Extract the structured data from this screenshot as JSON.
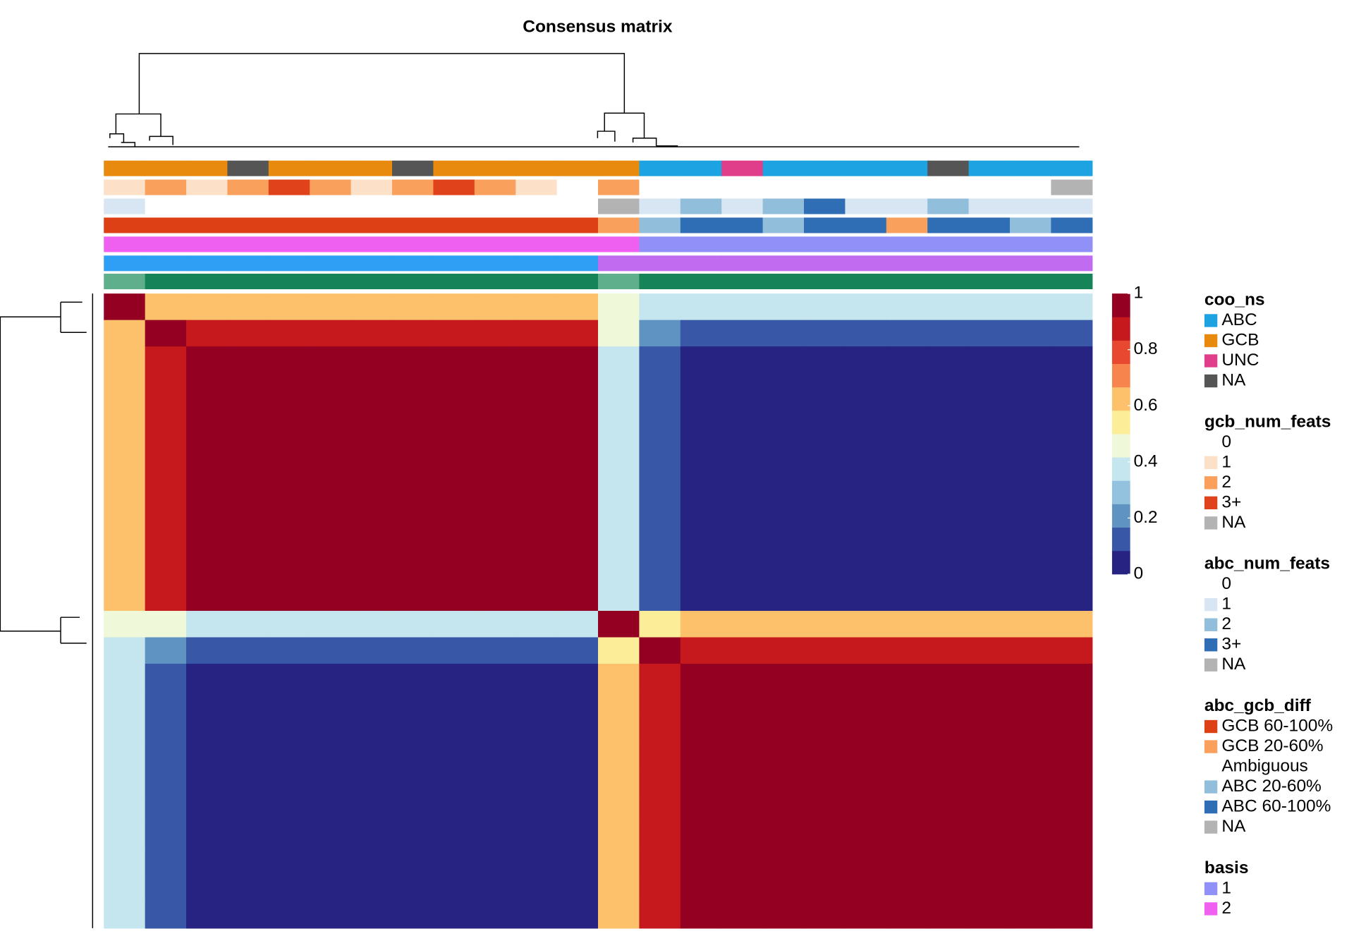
{
  "chart_data": {
    "type": "heatmap",
    "title": "Consensus matrix",
    "zlim": [
      0,
      1
    ],
    "zticks": [
      0,
      0.2,
      0.4,
      0.6,
      0.8,
      1
    ],
    "colorscale": [
      "#262383",
      "#3857a6",
      "#5f93c2",
      "#93c2de",
      "#c5e5ef",
      "#eff8d8",
      "#fcee98",
      "#fdc06b",
      "#f6844c",
      "#e8482f",
      "#c6191d",
      "#940021"
    ],
    "matrix": [
      [
        1,
        0.62,
        0.65,
        0.65,
        0.65,
        0.65,
        0.65,
        0.65,
        0.65,
        0.65,
        0.65,
        0.65,
        0.47,
        0.4,
        0.35,
        0.35,
        0.35,
        0.35,
        0.35,
        0.35,
        0.35,
        0.35,
        0.35,
        0.35
      ],
      [
        0.62,
        1,
        0.9,
        0.9,
        0.9,
        0.9,
        0.9,
        0.9,
        0.9,
        0.9,
        0.9,
        0.9,
        0.42,
        0.22,
        0.1,
        0.1,
        0.1,
        0.1,
        0.1,
        0.1,
        0.1,
        0.1,
        0.1,
        0.1
      ],
      [
        0.65,
        0.9,
        1,
        1,
        1,
        1,
        1,
        1,
        1,
        1,
        1,
        1,
        0.4,
        0.15,
        0,
        0,
        0,
        0,
        0,
        0,
        0,
        0,
        0,
        0
      ],
      [
        0.65,
        0.9,
        1,
        1,
        1,
        1,
        1,
        1,
        1,
        1,
        1,
        1,
        0.4,
        0.15,
        0,
        0,
        0,
        0,
        0,
        0,
        0,
        0,
        0,
        0
      ],
      [
        0.65,
        0.9,
        1,
        1,
        1,
        1,
        1,
        1,
        1,
        1,
        1,
        1,
        0.4,
        0.15,
        0,
        0,
        0,
        0,
        0,
        0,
        0,
        0,
        0,
        0
      ],
      [
        0.65,
        0.9,
        1,
        1,
        1,
        1,
        1,
        1,
        1,
        1,
        1,
        1,
        0.4,
        0.15,
        0,
        0,
        0,
        0,
        0,
        0,
        0,
        0,
        0,
        0
      ],
      [
        0.65,
        0.9,
        1,
        1,
        1,
        1,
        1,
        1,
        1,
        1,
        1,
        1,
        0.4,
        0.15,
        0,
        0,
        0,
        0,
        0,
        0,
        0,
        0,
        0,
        0
      ],
      [
        0.65,
        0.9,
        1,
        1,
        1,
        1,
        1,
        1,
        1,
        1,
        1,
        1,
        0.4,
        0.15,
        0,
        0,
        0,
        0,
        0,
        0,
        0,
        0,
        0,
        0
      ],
      [
        0.65,
        0.9,
        1,
        1,
        1,
        1,
        1,
        1,
        1,
        1,
        1,
        1,
        0.4,
        0.15,
        0,
        0,
        0,
        0,
        0,
        0,
        0,
        0,
        0,
        0
      ],
      [
        0.65,
        0.9,
        1,
        1,
        1,
        1,
        1,
        1,
        1,
        1,
        1,
        1,
        0.4,
        0.15,
        0,
        0,
        0,
        0,
        0,
        0,
        0,
        0,
        0,
        0
      ],
      [
        0.65,
        0.9,
        1,
        1,
        1,
        1,
        1,
        1,
        1,
        1,
        1,
        1,
        0.4,
        0.15,
        0,
        0,
        0,
        0,
        0,
        0,
        0,
        0,
        0,
        0
      ],
      [
        0.65,
        0.9,
        1,
        1,
        1,
        1,
        1,
        1,
        1,
        1,
        1,
        1,
        0.4,
        0.15,
        0,
        0,
        0,
        0,
        0,
        0,
        0,
        0,
        0,
        0
      ],
      [
        0.47,
        0.42,
        0.4,
        0.4,
        0.4,
        0.4,
        0.4,
        0.4,
        0.4,
        0.4,
        0.4,
        0.4,
        1,
        0.57,
        0.6,
        0.6,
        0.6,
        0.6,
        0.6,
        0.6,
        0.6,
        0.6,
        0.6,
        0.6
      ],
      [
        0.4,
        0.22,
        0.15,
        0.15,
        0.15,
        0.15,
        0.15,
        0.15,
        0.15,
        0.15,
        0.15,
        0.15,
        0.57,
        1,
        0.85,
        0.85,
        0.85,
        0.85,
        0.85,
        0.85,
        0.85,
        0.85,
        0.85,
        0.85
      ],
      [
        0.35,
        0.1,
        0,
        0,
        0,
        0,
        0,
        0,
        0,
        0,
        0,
        0,
        0.6,
        0.85,
        1,
        1,
        1,
        1,
        1,
        1,
        1,
        1,
        1,
        1
      ],
      [
        0.35,
        0.1,
        0,
        0,
        0,
        0,
        0,
        0,
        0,
        0,
        0,
        0,
        0.6,
        0.85,
        1,
        1,
        1,
        1,
        1,
        1,
        1,
        1,
        1,
        1
      ],
      [
        0.35,
        0.1,
        0,
        0,
        0,
        0,
        0,
        0,
        0,
        0,
        0,
        0,
        0.6,
        0.85,
        1,
        1,
        1,
        1,
        1,
        1,
        1,
        1,
        1,
        1
      ],
      [
        0.35,
        0.1,
        0,
        0,
        0,
        0,
        0,
        0,
        0,
        0,
        0,
        0,
        0.6,
        0.85,
        1,
        1,
        1,
        1,
        1,
        1,
        1,
        1,
        1,
        1
      ],
      [
        0.35,
        0.1,
        0,
        0,
        0,
        0,
        0,
        0,
        0,
        0,
        0,
        0,
        0.6,
        0.85,
        1,
        1,
        1,
        1,
        1,
        1,
        1,
        1,
        1,
        1
      ],
      [
        0.35,
        0.1,
        0,
        0,
        0,
        0,
        0,
        0,
        0,
        0,
        0,
        0,
        0.6,
        0.85,
        1,
        1,
        1,
        1,
        1,
        1,
        1,
        1,
        1,
        1
      ],
      [
        0.35,
        0.1,
        0,
        0,
        0,
        0,
        0,
        0,
        0,
        0,
        0,
        0,
        0.6,
        0.85,
        1,
        1,
        1,
        1,
        1,
        1,
        1,
        1,
        1,
        1
      ],
      [
        0.35,
        0.1,
        0,
        0,
        0,
        0,
        0,
        0,
        0,
        0,
        0,
        0,
        0.6,
        0.85,
        1,
        1,
        1,
        1,
        1,
        1,
        1,
        1,
        1,
        1
      ],
      [
        0.35,
        0.1,
        0,
        0,
        0,
        0,
        0,
        0,
        0,
        0,
        0,
        0,
        0.6,
        0.85,
        1,
        1,
        1,
        1,
        1,
        1,
        1,
        1,
        1,
        1
      ],
      [
        0.35,
        0.1,
        0,
        0,
        0,
        0,
        0,
        0,
        0,
        0,
        0,
        0,
        0.6,
        0.85,
        1,
        1,
        1,
        1,
        1,
        1,
        1,
        1,
        1,
        1
      ]
    ],
    "tracks": [
      {
        "title": "coo_ns",
        "levels": [
          {
            "label": "ABC",
            "color": "#1ea3e2"
          },
          {
            "label": "GCB",
            "color": "#e88a0e"
          },
          {
            "label": "UNC",
            "color": "#e03d8a"
          },
          {
            "label": "NA",
            "color": "#555555"
          }
        ],
        "values": [
          1,
          1,
          1,
          3,
          1,
          1,
          1,
          3,
          1,
          1,
          1,
          1,
          1,
          0,
          0,
          2,
          0,
          0,
          0,
          0,
          3,
          0,
          0,
          0
        ]
      },
      {
        "title": "gcb_num_feats",
        "levels": [
          {
            "label": "0",
            "color": "#ffffff"
          },
          {
            "label": "1",
            "color": "#fde0c8"
          },
          {
            "label": "2",
            "color": "#f9a05c"
          },
          {
            "label": "3+",
            "color": "#e0421b"
          },
          {
            "label": "NA",
            "color": "#b3b3b3"
          }
        ],
        "values": [
          1,
          2,
          1,
          2,
          3,
          2,
          1,
          2,
          3,
          2,
          1,
          0,
          2,
          0,
          0,
          0,
          0,
          0,
          0,
          0,
          0,
          0,
          0,
          4
        ]
      },
      {
        "title": "abc_num_feats",
        "levels": [
          {
            "label": "0",
            "color": "#ffffff"
          },
          {
            "label": "1",
            "color": "#d8e6f3"
          },
          {
            "label": "2",
            "color": "#91bedb"
          },
          {
            "label": "3+",
            "color": "#2f6db5"
          },
          {
            "label": "NA",
            "color": "#b3b3b3"
          }
        ],
        "values": [
          1,
          0,
          0,
          0,
          0,
          0,
          0,
          0,
          0,
          0,
          0,
          0,
          4,
          1,
          2,
          1,
          2,
          3,
          1,
          1,
          2,
          1,
          1,
          1
        ]
      },
      {
        "title": "abc_gcb_diff",
        "levels": [
          {
            "label": "GCB 60-100%",
            "color": "#de4015"
          },
          {
            "label": "GCB 20-60%",
            "color": "#f9a05c"
          },
          {
            "label": "Ambiguous",
            "color": "#ffffff"
          },
          {
            "label": "ABC 20-60%",
            "color": "#91bedb"
          },
          {
            "label": "ABC 60-100%",
            "color": "#2f6db5"
          },
          {
            "label": "NA",
            "color": "#b3b3b3"
          }
        ],
        "values": [
          0,
          0,
          0,
          0,
          0,
          0,
          0,
          0,
          0,
          0,
          0,
          0,
          1,
          3,
          4,
          4,
          3,
          4,
          4,
          1,
          4,
          4,
          3,
          4
        ]
      },
      {
        "title": "basis",
        "levels": [
          {
            "label": "1",
            "color": "#9090f8"
          },
          {
            "label": "2",
            "color": "#f060f0"
          }
        ],
        "values": [
          1,
          1,
          1,
          1,
          1,
          1,
          1,
          1,
          1,
          1,
          1,
          1,
          1,
          0,
          0,
          0,
          0,
          0,
          0,
          0,
          0,
          0,
          0,
          0
        ]
      },
      {
        "levels": [
          {
            "color": "#2f9ef5"
          },
          {
            "color": "#c06bf0"
          }
        ],
        "values": [
          0,
          0,
          0,
          0,
          0,
          0,
          0,
          0,
          0,
          0,
          0,
          0,
          1,
          1,
          1,
          1,
          1,
          1,
          1,
          1,
          1,
          1,
          1,
          1
        ]
      },
      {
        "levels": [
          {
            "color": "#168358"
          },
          {
            "color": "#5fae8c"
          }
        ],
        "values": [
          1,
          0,
          0,
          0,
          0,
          0,
          0,
          0,
          0,
          0,
          0,
          0,
          1,
          0,
          0,
          0,
          0,
          0,
          0,
          0,
          0,
          0,
          0,
          0
        ]
      }
    ]
  }
}
